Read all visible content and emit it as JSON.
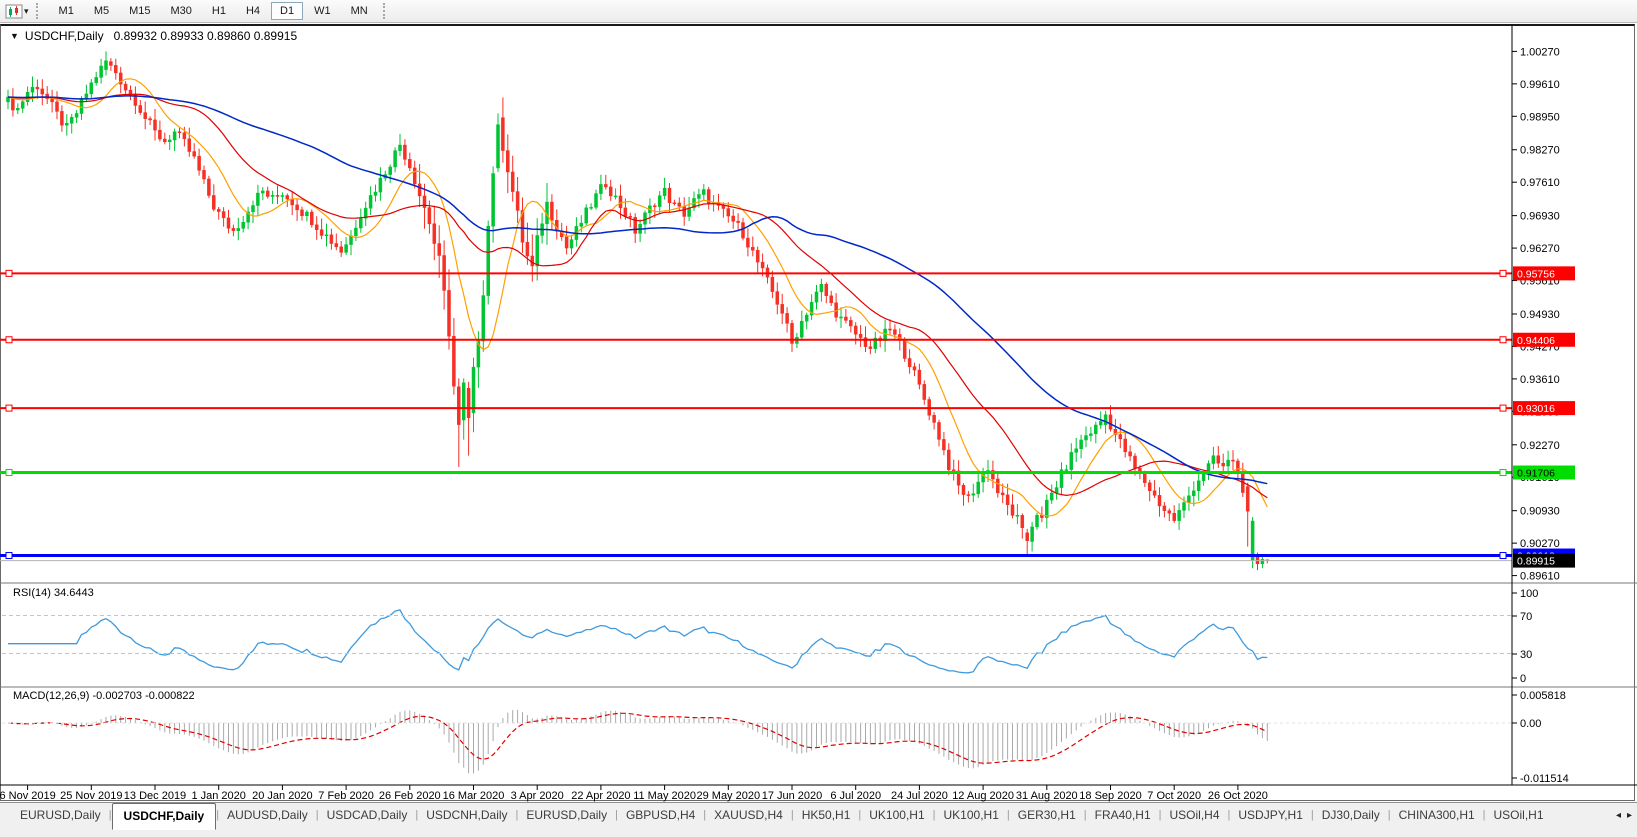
{
  "toolbar": {
    "timeframes": [
      "M1",
      "M5",
      "M15",
      "M30",
      "H1",
      "H4",
      "D1",
      "W1",
      "MN"
    ],
    "active_timeframe": "D1"
  },
  "chart": {
    "title_symbol": "USDCHF,Daily",
    "ohlc": "0.89932 0.89933 0.89860 0.89915",
    "open": "0.89932",
    "high": "0.89933",
    "low": "0.89860",
    "close": "0.89915"
  },
  "price_axis": {
    "ticks": [
      "1.00270",
      "0.99610",
      "0.98950",
      "0.98270",
      "0.97610",
      "0.96930",
      "0.96270",
      "0.95610",
      "0.94930",
      "0.94270",
      "0.93610",
      "0.92950",
      "0.92270",
      "0.91610",
      "0.90930",
      "0.90270",
      "0.89610"
    ],
    "top_value": 1.004,
    "bottom_value": 0.895
  },
  "hlines": [
    {
      "label": "0.95756",
      "value": 0.95756,
      "color": "#ff0000",
      "text_color": "#ffffff",
      "width": 2
    },
    {
      "label": "0.94406",
      "value": 0.94406,
      "color": "#ff0000",
      "text_color": "#ffffff",
      "width": 2
    },
    {
      "label": "0.93016",
      "value": 0.93016,
      "color": "#ff0000",
      "text_color": "#ffffff",
      "width": 2
    },
    {
      "label": "0.91706",
      "value": 0.91706,
      "color": "#00dd00",
      "text_color": "#000000",
      "width": 3
    },
    {
      "label": "0.90018",
      "value": 0.90018,
      "color": "#0000ff",
      "text_color": "#ffffff",
      "width": 3
    }
  ],
  "current_price": {
    "label": "0.89915",
    "value": 0.89915,
    "line_color": "#b3b3b3",
    "box_color": "#000000",
    "text_color": "#ffffff"
  },
  "rsi_panel": {
    "name": "RSI(14)",
    "value": "34.6443",
    "axis_labels": [
      "100",
      "70",
      "30",
      "0"
    ],
    "level_lines": [
      70,
      30
    ],
    "line_color": "#3e9ade"
  },
  "macd_panel": {
    "name": "MACD(12,26,9)",
    "values": "-0.002703 -0.000822",
    "axis_labels": [
      "0.005818",
      "0.00",
      "-0.011514"
    ],
    "hist_color": "#a9a9a9",
    "signal_color": "#e00000"
  },
  "x_axis": {
    "labels": [
      {
        "text": "6 Nov 2019",
        "bar": 4
      },
      {
        "text": "25 Nov 2019",
        "bar": 17
      },
      {
        "text": "13 Dec 2019",
        "bar": 30
      },
      {
        "text": "1 Jan 2020",
        "bar": 43
      },
      {
        "text": "20 Jan 2020",
        "bar": 56
      },
      {
        "text": "7 Feb 2020",
        "bar": 69
      },
      {
        "text": "26 Feb 2020",
        "bar": 82
      },
      {
        "text": "16 Mar 2020",
        "bar": 95
      },
      {
        "text": "3 Apr 2020",
        "bar": 108
      },
      {
        "text": "22 Apr 2020",
        "bar": 121
      },
      {
        "text": "11 May 2020",
        "bar": 134
      },
      {
        "text": "29 May 2020",
        "bar": 147
      },
      {
        "text": "17 Jun 2020",
        "bar": 160
      },
      {
        "text": "6 Jul 2020",
        "bar": 173
      },
      {
        "text": "24 Jul 2020",
        "bar": 186
      },
      {
        "text": "12 Aug 2020",
        "bar": 199
      },
      {
        "text": "31 Aug 2020",
        "bar": 212
      },
      {
        "text": "18 Sep 2020",
        "bar": 225
      },
      {
        "text": "7 Oct 2020",
        "bar": 238
      },
      {
        "text": "26 Oct 2020",
        "bar": 251
      }
    ]
  },
  "tabs": {
    "items": [
      "EURUSD,Daily",
      "USDCHF,Daily",
      "AUDUSD,Daily",
      "USDCAD,Daily",
      "USDCNH,Daily",
      "EURUSD,Daily",
      "GBPUSD,H4",
      "XAUUSD,H4",
      "HK50,H1",
      "UK100,H1",
      "UK100,H1",
      "GER30,H1",
      "FRA40,H1",
      "USOil,H4",
      "USDJPY,H1",
      "DJ30,Daily",
      "CHINA300,H1",
      "USOil,H1"
    ],
    "active_index": 1
  },
  "chart_data": {
    "type": "candlestick",
    "symbol": "USDCHF",
    "timeframe": "Daily",
    "bars": 258,
    "indicators": [
      "RSI(14)",
      "MACD(12,26,9)"
    ],
    "ma_periods": {
      "fast": 10,
      "mid": 25,
      "slow": 60
    },
    "colors": {
      "up": "#00c432",
      "down": "#f53025",
      "ma_fast": "#ffa000",
      "ma_mid": "#e00000",
      "ma_slow": "#0028c8"
    },
    "close_waypoints": [
      [
        0,
        0.9925
      ],
      [
        2,
        0.991
      ],
      [
        4,
        0.9945
      ],
      [
        6,
        0.9958
      ],
      [
        8,
        0.993
      ],
      [
        10,
        0.9898
      ],
      [
        12,
        0.987
      ],
      [
        14,
        0.9902
      ],
      [
        16,
        0.9942
      ],
      [
        18,
        0.9978
      ],
      [
        20,
        1.0005
      ],
      [
        22,
        0.9985
      ],
      [
        24,
        0.9952
      ],
      [
        26,
        0.9928
      ],
      [
        28,
        0.9892
      ],
      [
        30,
        0.9862
      ],
      [
        32,
        0.9845
      ],
      [
        34,
        0.9862
      ],
      [
        36,
        0.984
      ],
      [
        38,
        0.9808
      ],
      [
        40,
        0.9758
      ],
      [
        42,
        0.9712
      ],
      [
        44,
        0.9682
      ],
      [
        46,
        0.9662
      ],
      [
        48,
        0.9688
      ],
      [
        50,
        0.9722
      ],
      [
        52,
        0.9742
      ],
      [
        54,
        0.9726
      ],
      [
        56,
        0.974
      ],
      [
        58,
        0.9722
      ],
      [
        60,
        0.9702
      ],
      [
        62,
        0.9685
      ],
      [
        64,
        0.9662
      ],
      [
        66,
        0.9642
      ],
      [
        68,
        0.9622
      ],
      [
        70,
        0.9652
      ],
      [
        72,
        0.9698
      ],
      [
        74,
        0.9732
      ],
      [
        76,
        0.9765
      ],
      [
        78,
        0.9802
      ],
      [
        80,
        0.9838
      ],
      [
        82,
        0.9795
      ],
      [
        84,
        0.9738
      ],
      [
        86,
        0.9682
      ],
      [
        88,
        0.9595
      ],
      [
        90,
        0.9462
      ],
      [
        91,
        0.9345
      ],
      [
        92,
        0.9268
      ],
      [
        93,
        0.9342
      ],
      [
        94,
        0.9282
      ],
      [
        95,
        0.9368
      ],
      [
        96,
        0.9452
      ],
      [
        97,
        0.9548
      ],
      [
        98,
        0.9672
      ],
      [
        99,
        0.9788
      ],
      [
        100,
        0.9875
      ],
      [
        101,
        0.9842
      ],
      [
        102,
        0.9795
      ],
      [
        103,
        0.9742
      ],
      [
        104,
        0.9688
      ],
      [
        105,
        0.9645
      ],
      [
        106,
        0.9608
      ],
      [
        107,
        0.9582
      ],
      [
        108,
        0.9635
      ],
      [
        109,
        0.9688
      ],
      [
        110,
        0.9715
      ],
      [
        112,
        0.9672
      ],
      [
        114,
        0.9628
      ],
      [
        116,
        0.9662
      ],
      [
        118,
        0.9698
      ],
      [
        120,
        0.9732
      ],
      [
        122,
        0.976
      ],
      [
        124,
        0.9728
      ],
      [
        126,
        0.9698
      ],
      [
        128,
        0.9662
      ],
      [
        130,
        0.9692
      ],
      [
        132,
        0.9722
      ],
      [
        134,
        0.9742
      ],
      [
        136,
        0.9712
      ],
      [
        138,
        0.9698
      ],
      [
        140,
        0.9722
      ],
      [
        142,
        0.9738
      ],
      [
        144,
        0.9715
      ],
      [
        146,
        0.9698
      ],
      [
        148,
        0.9682
      ],
      [
        150,
        0.9658
      ],
      [
        152,
        0.9618
      ],
      [
        154,
        0.9578
      ],
      [
        156,
        0.9538
      ],
      [
        158,
        0.9498
      ],
      [
        160,
        0.9432
      ],
      [
        162,
        0.9478
      ],
      [
        164,
        0.9518
      ],
      [
        166,
        0.9548
      ],
      [
        168,
        0.9512
      ],
      [
        170,
        0.9482
      ],
      [
        172,
        0.9462
      ],
      [
        174,
        0.9442
      ],
      [
        176,
        0.9425
      ],
      [
        178,
        0.9442
      ],
      [
        180,
        0.9462
      ],
      [
        182,
        0.9432
      ],
      [
        184,
        0.9395
      ],
      [
        186,
        0.9345
      ],
      [
        188,
        0.9295
      ],
      [
        190,
        0.9245
      ],
      [
        192,
        0.9185
      ],
      [
        194,
        0.9142
      ],
      [
        196,
        0.9118
      ],
      [
        198,
        0.9152
      ],
      [
        200,
        0.9182
      ],
      [
        202,
        0.9132
      ],
      [
        204,
        0.9102
      ],
      [
        206,
        0.9075
      ],
      [
        207,
        0.9048
      ],
      [
        208,
        0.9032
      ],
      [
        209,
        0.9065
      ],
      [
        210,
        0.909
      ],
      [
        211,
        0.9072
      ],
      [
        212,
        0.9108
      ],
      [
        214,
        0.9146
      ],
      [
        216,
        0.9185
      ],
      [
        218,
        0.9222
      ],
      [
        220,
        0.9246
      ],
      [
        222,
        0.9262
      ],
      [
        224,
        0.9288
      ],
      [
        226,
        0.9248
      ],
      [
        228,
        0.9215
      ],
      [
        230,
        0.9178
      ],
      [
        232,
        0.9152
      ],
      [
        234,
        0.9122
      ],
      [
        236,
        0.9095
      ],
      [
        238,
        0.9075
      ],
      [
        240,
        0.9105
      ],
      [
        242,
        0.9142
      ],
      [
        244,
        0.9172
      ],
      [
        246,
        0.9195
      ],
      [
        248,
        0.9182
      ],
      [
        250,
        0.9198
      ],
      [
        251,
        0.9165
      ],
      [
        252,
        0.914
      ],
      [
        253,
        0.9092
      ],
      [
        254,
        0.907
      ],
      [
        255,
        0.8985
      ],
      [
        256,
        0.8994
      ],
      [
        257,
        0.89915
      ]
    ],
    "override_bars": [
      {
        "bar": 20,
        "o": 0.999,
        "h": 1.0027,
        "l": 0.9978,
        "c": 1.0008
      },
      {
        "bar": 92,
        "o": 0.9345,
        "h": 0.9362,
        "l": 0.9182,
        "c": 0.9268
      },
      {
        "bar": 94,
        "o": 0.9342,
        "h": 0.9355,
        "l": 0.9205,
        "c": 0.9282
      },
      {
        "bar": 100,
        "o": 0.979,
        "h": 0.9901,
        "l": 0.9782,
        "c": 0.9878
      },
      {
        "bar": 208,
        "o": 0.9048,
        "h": 0.9056,
        "l": 0.9002,
        "c": 0.9032
      },
      {
        "bar": 224,
        "o": 0.9268,
        "h": 0.9296,
        "l": 0.925,
        "c": 0.9288
      },
      {
        "bar": 253,
        "o": 0.9142,
        "h": 0.915,
        "l": 0.902,
        "c": 0.9092
      },
      {
        "bar": 254,
        "o": 0.8992,
        "h": 0.908,
        "l": 0.8976,
        "c": 0.9072
      },
      {
        "bar": 255,
        "o": 0.9,
        "h": 0.9008,
        "l": 0.8972,
        "c": 0.8985
      },
      {
        "bar": 256,
        "o": 0.8985,
        "h": 0.9,
        "l": 0.8976,
        "c": 0.8994
      },
      {
        "bar": 257,
        "o": 0.89932,
        "h": 0.89933,
        "l": 0.8986,
        "c": 0.89915
      }
    ]
  }
}
